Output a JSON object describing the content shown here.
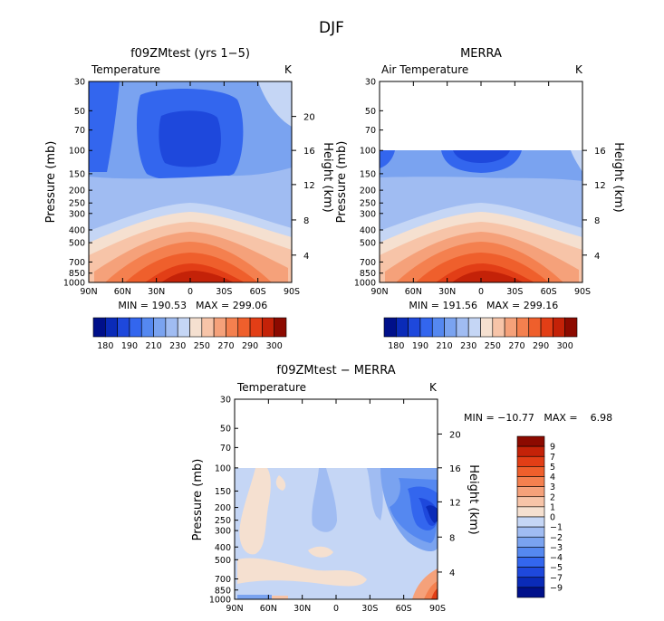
{
  "page_title": "DJF",
  "chart_data": [
    {
      "type": "heatmap",
      "title": "f09ZMtest (yrs 1−5)",
      "variable": "Temperature",
      "units": "K",
      "ylabel": "Pressure (mb)",
      "ylabel_right": "Height (km)",
      "x_ticks": [
        "90N",
        "60N",
        "30N",
        "0",
        "30S",
        "60S",
        "90S"
      ],
      "y_ticks": [
        "30",
        "50",
        "70",
        "100",
        "150",
        "200",
        "250",
        "300",
        "400",
        "500",
        "700",
        "850",
        "1000"
      ],
      "height_ticks": [
        "20",
        "16",
        "12",
        "8",
        "4"
      ],
      "min_label": "MIN = 190.53",
      "max_label": "MAX = 299.06",
      "min": 190.53,
      "max": 299.06,
      "ylim_mb": [
        30,
        1000
      ]
    },
    {
      "type": "heatmap",
      "title": "MERRA",
      "variable": "Air Temperature",
      "units": "K",
      "ylabel": "Pressure (mb)",
      "ylabel_right": "Height (km)",
      "x_ticks": [
        "90N",
        "60N",
        "30N",
        "0",
        "30S",
        "60S",
        "90S"
      ],
      "y_ticks": [
        "30",
        "50",
        "70",
        "100",
        "150",
        "200",
        "250",
        "300",
        "400",
        "500",
        "700",
        "850",
        "1000"
      ],
      "height_ticks": [
        "16",
        "12",
        "8",
        "4"
      ],
      "min_label": "MIN = 191.56",
      "max_label": "MAX = 299.16",
      "min": 191.56,
      "max": 299.16,
      "data_top_mb": 100,
      "ylim_mb": [
        30,
        1000
      ]
    },
    {
      "type": "heatmap",
      "title": "f09ZMtest − MERRA",
      "variable": "Temperature",
      "units": "K",
      "ylabel": "Pressure (mb)",
      "ylabel_right": "Height (km)",
      "x_ticks": [
        "90N",
        "60N",
        "30N",
        "0",
        "30S",
        "60S",
        "90S"
      ],
      "y_ticks": [
        "30",
        "50",
        "70",
        "100",
        "150",
        "200",
        "250",
        "300",
        "400",
        "500",
        "700",
        "850",
        "1000"
      ],
      "height_ticks": [
        "20",
        "16",
        "12",
        "8",
        "4"
      ],
      "minmax_label": "MIN = −10.77   MAX =    6.98",
      "min": -10.77,
      "max": 6.98,
      "data_top_mb": 100,
      "ylim_mb": [
        30,
        1000
      ]
    }
  ],
  "colorbar_top": {
    "labels": [
      "180",
      "190",
      "210",
      "230",
      "250",
      "270",
      "290",
      "300"
    ],
    "colors": [
      "#00108a",
      "#0a2bb8",
      "#1e48dc",
      "#3366ee",
      "#5588f0",
      "#7aa3f0",
      "#a0bcf2",
      "#c5d6f5",
      "#f5e0d0",
      "#f7c4a8",
      "#f5a17a",
      "#f4804f",
      "#ef5f2c",
      "#e23e16",
      "#c42208",
      "#8c0a00"
    ]
  },
  "colorbar_diff": {
    "labels": [
      "9",
      "7",
      "5",
      "4",
      "3",
      "2",
      "1",
      "0",
      "−1",
      "−2",
      "−3",
      "−4",
      "−5",
      "−7",
      "−9"
    ],
    "colors": [
      "#8c0a00",
      "#c42208",
      "#e23e16",
      "#ef5f2c",
      "#f4804f",
      "#f5a17a",
      "#f7c4a8",
      "#f5e0d0",
      "#c5d6f5",
      "#a0bcf2",
      "#7aa3f0",
      "#5588f0",
      "#3366ee",
      "#1e48dc",
      "#0a2bb8",
      "#00108a"
    ]
  }
}
